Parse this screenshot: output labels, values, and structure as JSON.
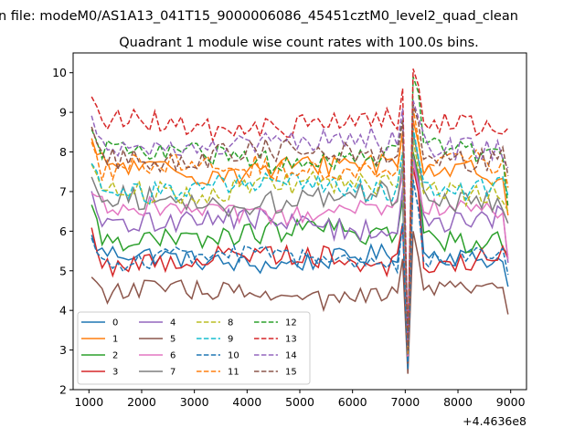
{
  "figure": {
    "suptitle": "n file: modeM0/AS1A13_041T15_9000006086_45451cztM0_level2_quad_clean",
    "title": "Quadrant 1 module wise count rates with 100.0s bins."
  },
  "chart_data": {
    "type": "line",
    "title": "Quadrant 1 module wise count rates with 100.0s bins.",
    "xlabel": "",
    "ylabel": "",
    "x_offset_label": "+4.4636e8",
    "xlim": [
      700,
      9300
    ],
    "ylim": [
      2,
      10.5
    ],
    "xticks": [
      1000,
      2000,
      3000,
      4000,
      5000,
      6000,
      7000,
      8000,
      9000
    ],
    "yticks": [
      2,
      3,
      4,
      5,
      6,
      7,
      8,
      9,
      10
    ],
    "grid": false,
    "legend": {
      "placement": "lower-left",
      "columns": 4
    },
    "x_range": [
      1050,
      8950
    ],
    "x_step": 100,
    "series": [
      {
        "name": "0",
        "color": "#1f77b4",
        "dash": "solid",
        "base": 5.3,
        "noise": 0.25,
        "dip": 2.6,
        "peak": 7.6,
        "end": 4.6
      },
      {
        "name": "1",
        "color": "#ff7f0e",
        "dash": "solid",
        "base": 7.6,
        "noise": 0.3,
        "dip": 2.9,
        "peak": 8.8,
        "end": 6.4
      },
      {
        "name": "2",
        "color": "#2ca02c",
        "dash": "solid",
        "base": 5.9,
        "noise": 0.3,
        "dip": 2.7,
        "peak": 8.0,
        "end": 5.4
      },
      {
        "name": "3",
        "color": "#d62728",
        "dash": "solid",
        "base": 5.3,
        "noise": 0.3,
        "dip": 2.6,
        "peak": 7.6,
        "end": 5.3
      },
      {
        "name": "4",
        "color": "#9467bd",
        "dash": "solid",
        "base": 6.2,
        "noise": 0.3,
        "dip": 2.7,
        "peak": 7.9,
        "end": 5.2
      },
      {
        "name": "5",
        "color": "#8c564b",
        "dash": "solid",
        "base": 4.4,
        "noise": 0.25,
        "dip": 2.4,
        "peak": 6.0,
        "end": 3.9
      },
      {
        "name": "6",
        "color": "#e377c2",
        "dash": "solid",
        "base": 6.5,
        "noise": 0.25,
        "dip": 2.8,
        "peak": 7.8,
        "end": 5.3
      },
      {
        "name": "7",
        "color": "#7f7f7f",
        "dash": "solid",
        "base": 6.8,
        "noise": 0.3,
        "dip": 2.9,
        "peak": 8.5,
        "end": 6.2
      },
      {
        "name": "8",
        "color": "#bcbd22",
        "dash": "dashed",
        "base": 7.1,
        "noise": 0.3,
        "dip": 2.9,
        "peak": 8.3,
        "end": 6.5
      },
      {
        "name": "9",
        "color": "#17becf",
        "dash": "dashed",
        "base": 7.1,
        "noise": 0.3,
        "dip": 3.0,
        "peak": 8.6,
        "end": 6.9
      },
      {
        "name": "10",
        "color": "#1f77b4",
        "dash": "dashed",
        "base": 5.3,
        "noise": 0.25,
        "dip": 2.5,
        "peak": 7.3,
        "end": 4.9
      },
      {
        "name": "11",
        "color": "#ff7f0e",
        "dash": "dashed",
        "base": 7.6,
        "noise": 0.3,
        "dip": 2.9,
        "peak": 9.1,
        "end": 7.1
      },
      {
        "name": "12",
        "color": "#2ca02c",
        "dash": "dashed",
        "base": 7.9,
        "noise": 0.3,
        "dip": 3.0,
        "peak": 9.9,
        "end": 6.6
      },
      {
        "name": "13",
        "color": "#d62728",
        "dash": "dashed",
        "base": 8.7,
        "noise": 0.3,
        "dip": 3.1,
        "peak": 10.1,
        "end": 8.6
      },
      {
        "name": "14",
        "color": "#9467bd",
        "dash": "dashed",
        "base": 8.2,
        "noise": 0.3,
        "dip": 3.1,
        "peak": 9.3,
        "end": 7.6
      },
      {
        "name": "15",
        "color": "#8c564b",
        "dash": "dashed",
        "base": 7.9,
        "noise": 0.3,
        "dip": 3.0,
        "peak": 9.2,
        "end": 7.4
      }
    ]
  }
}
